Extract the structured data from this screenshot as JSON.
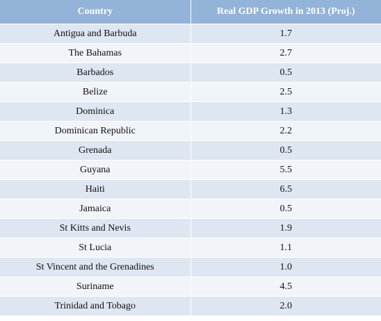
{
  "table": {
    "headers": [
      "Country",
      "Real GDP Growth in 2013 (Proj.)"
    ]
  },
  "chart_data": {
    "type": "table",
    "columns": [
      "Country",
      "Real GDP Growth in 2013 (Proj.)"
    ],
    "rows": [
      [
        "Antigua and Barbuda",
        "1.7"
      ],
      [
        "The Bahamas",
        "2.7"
      ],
      [
        "Barbados",
        "0.5"
      ],
      [
        "Belize",
        "2.5"
      ],
      [
        "Dominica",
        "1.3"
      ],
      [
        "Dominican Republic",
        "2.2"
      ],
      [
        "Grenada",
        "0.5"
      ],
      [
        "Guyana",
        "5.5"
      ],
      [
        "Haiti",
        "6.5"
      ],
      [
        "Jamaica",
        "0.5"
      ],
      [
        "St Kitts and Nevis",
        "1.9"
      ],
      [
        "St Lucia",
        "1.1"
      ],
      [
        "St Vincent and the Grenadines",
        "1.0"
      ],
      [
        "Suriname",
        "4.5"
      ],
      [
        "Trinidad and Tobago",
        "2.0"
      ]
    ]
  }
}
